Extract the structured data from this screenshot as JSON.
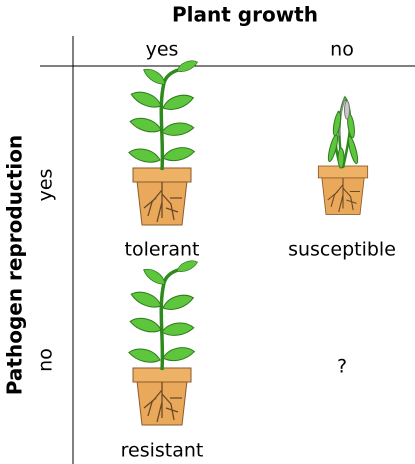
{
  "header": {
    "title": "Plant growth",
    "columns": [
      "yes",
      "no"
    ]
  },
  "rows": {
    "title": "Pathogen reproduction",
    "labels": [
      "yes",
      "no"
    ]
  },
  "cells": [
    [
      "tolerant",
      "susceptible"
    ],
    [
      "resistant",
      "?"
    ]
  ]
}
